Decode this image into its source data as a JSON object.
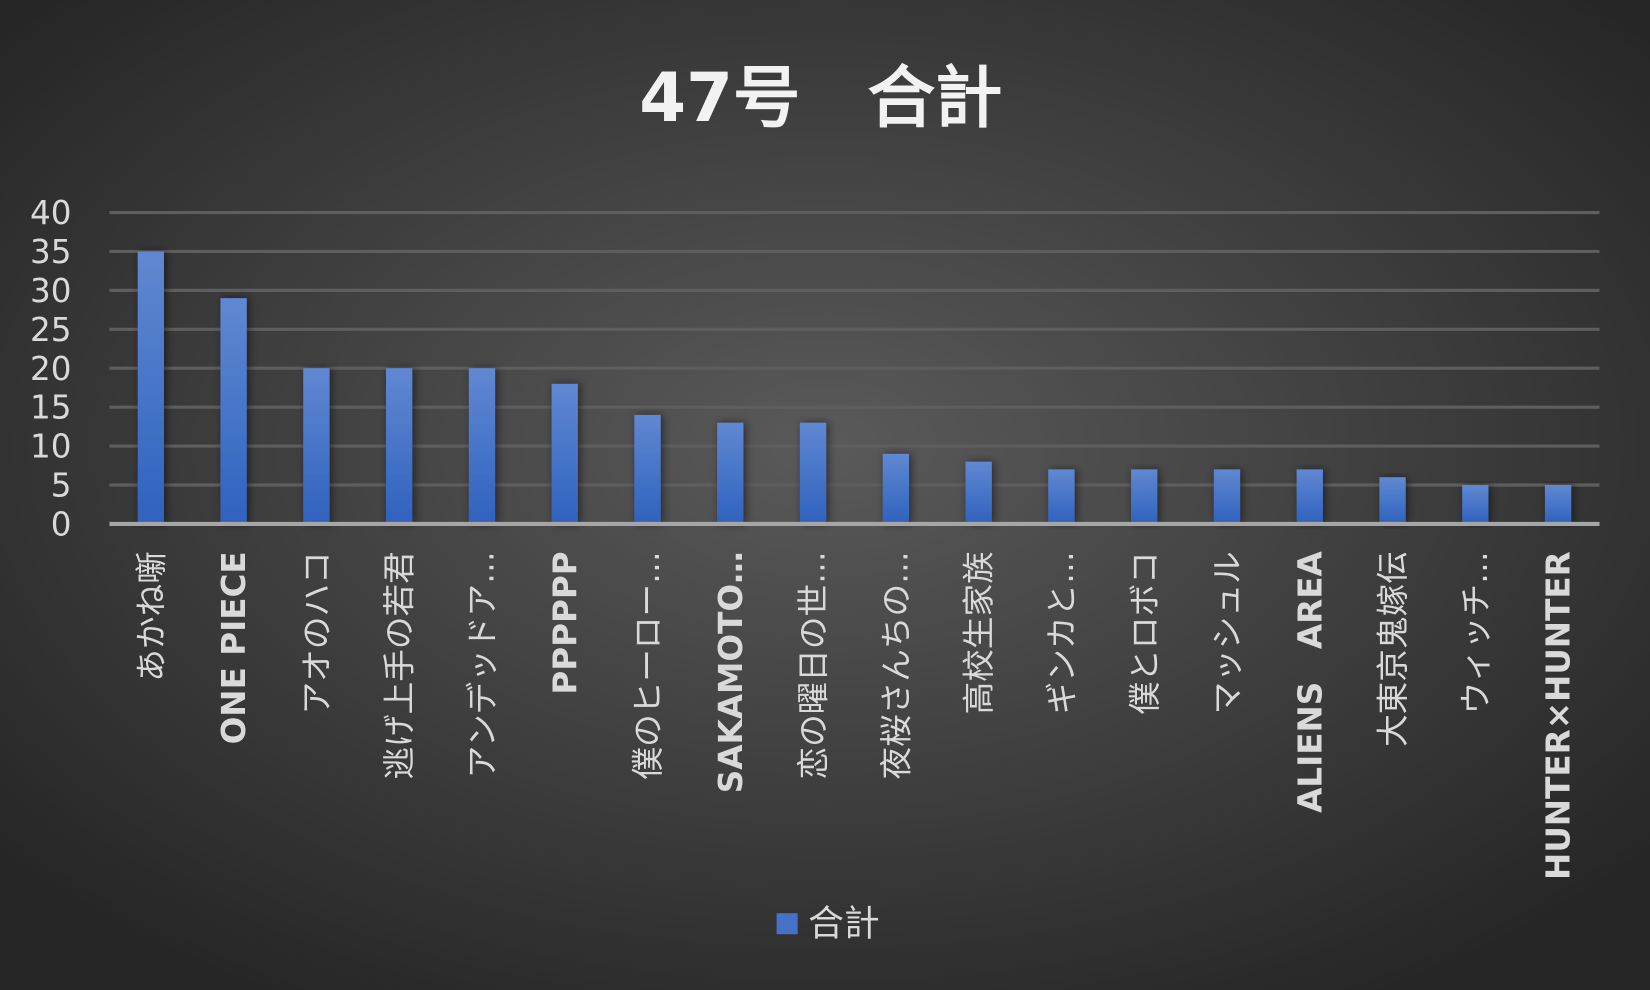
{
  "chart_data": {
    "type": "bar",
    "title": "47号　合計",
    "xlabel": "",
    "ylabel": "",
    "ylim": [
      0,
      40
    ],
    "yticks": [
      0,
      5,
      10,
      15,
      20,
      25,
      30,
      35,
      40
    ],
    "grid": true,
    "legend_position": "bottom",
    "categories": [
      "あかね噺",
      "ONE PIECE",
      "アオのハコ",
      "逃げ上手の若君",
      "アンデッドア…",
      "PPPPPP",
      "僕のヒーロー…",
      "SAKAMOTO…",
      "恋の曜日の世…",
      "夜桜さんちの…",
      "高校生家族",
      "ギンカと…",
      "僕とロボコ",
      "マッシュル",
      "ALIENS　AREA",
      "大東京鬼嫁伝",
      "ウィッチ…",
      "HUNTER×HUNTER"
    ],
    "series": [
      {
        "name": "合計",
        "values": [
          35,
          29,
          20,
          20,
          20,
          18,
          14,
          13,
          13,
          9,
          8,
          7,
          7,
          7,
          7,
          6,
          5,
          5
        ],
        "color": "#4472c4"
      }
    ]
  }
}
